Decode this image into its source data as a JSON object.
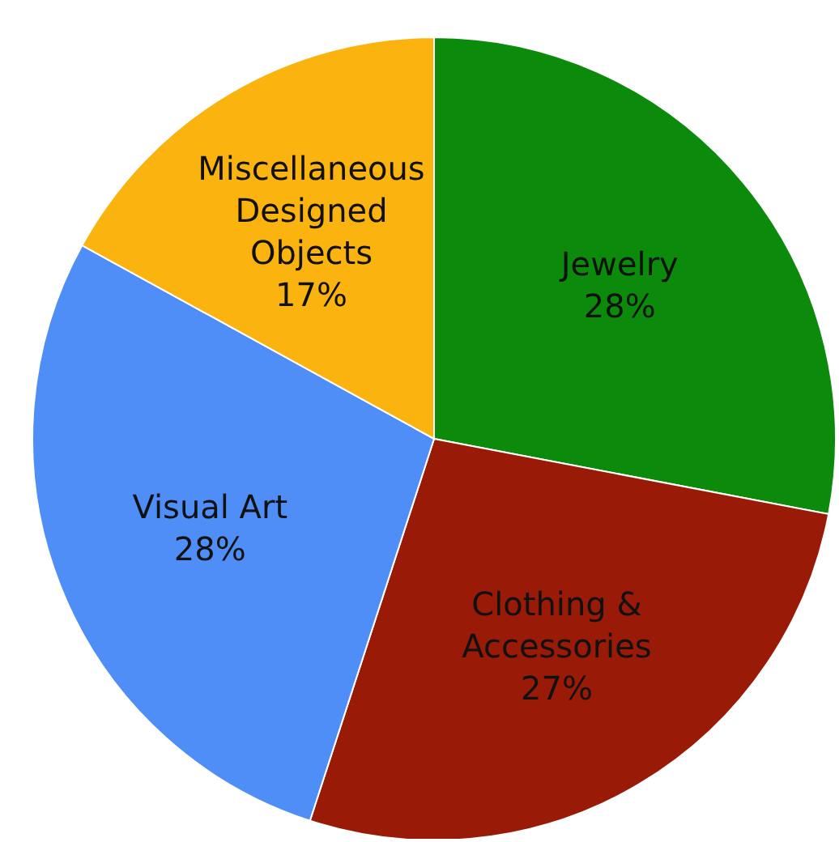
{
  "chart_data": {
    "type": "pie",
    "categories": [
      "Jewelry",
      "Clothing & Accessories",
      "Visual Art",
      "Miscellaneous Designed Objects"
    ],
    "values": [
      28,
      27,
      28,
      17
    ],
    "colors": [
      "#0b8a0b",
      "#9a1a08",
      "#4f8ef7",
      "#fbb40f"
    ],
    "value_labels": [
      "28%",
      "27%",
      "28%",
      "17%"
    ],
    "legend": false
  }
}
